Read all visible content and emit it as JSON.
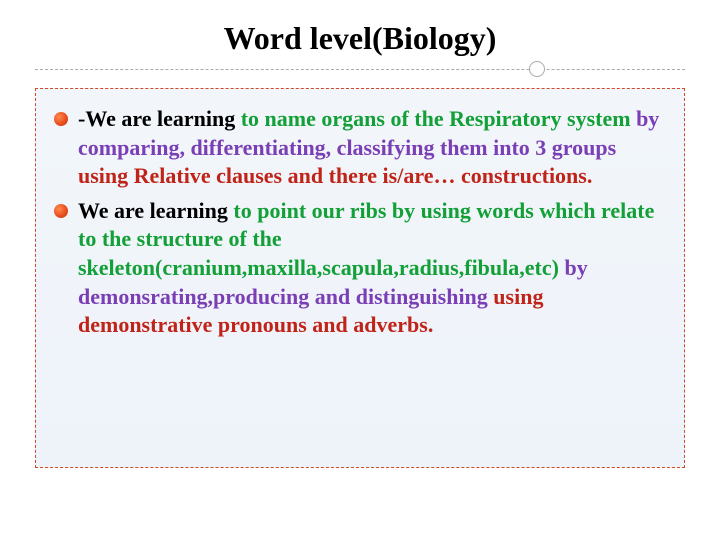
{
  "title": "Word level(Biology)",
  "colors": {
    "black": "#000000",
    "green": "#12a037",
    "purple": "#7a3fb5",
    "red": "#c02418",
    "bullet_gradient_light": "#ff8a50",
    "bullet_gradient_mid": "#e84a1a",
    "bullet_gradient_dark": "#b83410",
    "box_border": "#d04a2a",
    "box_bg_top": "#f2f6fb",
    "box_bg_bottom": "#eef3f9",
    "divider": "#aaaaaa"
  },
  "bullets": [
    {
      "segments": [
        {
          "text": "-We are learning ",
          "color": "black"
        },
        {
          "text": "to name  organs of the Respiratory system ",
          "color": "green"
        },
        {
          "text": "by comparing, differentiating, classifying them into 3 groups ",
          "color": "purple"
        },
        {
          "text": "using Relative clauses and there is/are… constructions.",
          "color": "red"
        }
      ]
    },
    {
      "segments": [
        {
          "text": "We are learning ",
          "color": "black"
        },
        {
          "text": "to point our ribs by using words which relate to the structure of the skeleton(cranium,maxilla,scapula,radius,fibula,etc) ",
          "color": "green"
        },
        {
          "text": "by demonsrating,producing and distinguishing ",
          "color": "purple"
        },
        {
          "text": "using demonstrative pronouns and adverbs.",
          "color": "red"
        }
      ]
    }
  ],
  "layout": {
    "title_fontsize": 32,
    "body_fontsize": 22,
    "bullet_diameter": 14
  }
}
